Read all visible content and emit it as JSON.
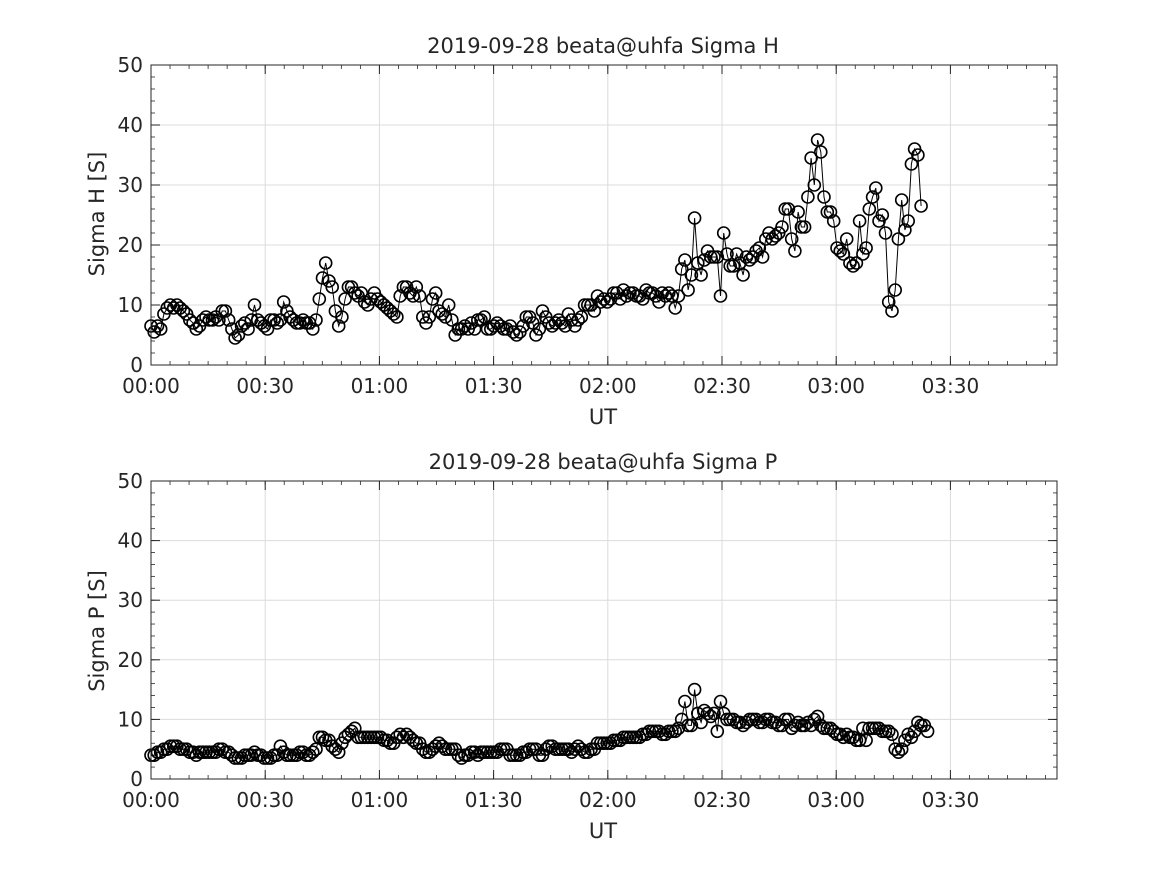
{
  "chart_data": [
    {
      "type": "line",
      "title": "2019-09-28  beata@uhfa Sigma H",
      "xlabel": "UT",
      "ylabel": "Sigma H [S]",
      "ylim": [
        0,
        50
      ],
      "xlim_minutes": [
        0,
        238
      ],
      "x_ticks": [
        "00:00",
        "00:30",
        "01:00",
        "01:30",
        "02:00",
        "02:30",
        "03:00",
        "03:30"
      ],
      "y_ticks": [
        "0",
        "10",
        "20",
        "30",
        "40",
        "50"
      ],
      "grid": true,
      "marker": "open-circle",
      "series": [
        {
          "x_start": "00:00",
          "x_step_minutes": 0.85,
          "values": [
            6.5,
            5.5,
            6.5,
            6,
            8.5,
            9.5,
            10,
            9.5,
            10,
            9.5,
            9,
            8.5,
            7.5,
            7,
            6,
            6.5,
            7.5,
            8,
            7.5,
            7.5,
            8,
            7.5,
            9,
            9,
            7.5,
            6,
            4.5,
            5,
            6.5,
            7,
            6,
            7.5,
            10,
            7.5,
            7,
            6.5,
            6,
            7.5,
            7.5,
            7,
            7.5,
            10.5,
            9,
            8,
            7.5,
            7,
            7,
            7.5,
            7,
            7,
            6,
            7.5,
            11,
            14.5,
            17,
            14,
            13,
            9,
            6.5,
            8,
            11,
            13,
            13,
            12,
            11.5,
            12,
            10.5,
            10,
            11,
            12,
            11,
            10.5,
            10,
            9.5,
            9,
            8.5,
            8,
            11.5,
            13,
            13,
            12,
            11.5,
            13,
            11.5,
            8,
            7,
            8,
            11,
            12,
            9,
            8.5,
            8,
            10,
            7.5,
            5,
            6,
            6,
            6.5,
            6,
            7,
            6,
            7.5,
            7.5,
            8,
            6,
            6,
            6.5,
            7,
            6.5,
            6,
            6,
            6.5,
            5.5,
            5,
            5.5,
            6.5,
            8,
            8,
            7,
            5,
            6,
            9,
            8,
            7,
            6.5,
            7,
            7.5,
            7,
            6.5,
            8.5,
            7.5,
            6.5,
            7.5,
            8,
            10,
            10,
            10,
            9,
            11.5,
            10.5,
            11,
            10.5,
            11,
            12,
            12,
            11,
            12.5,
            11.5,
            12,
            12,
            11.5,
            11.5,
            11,
            12.5,
            12,
            12,
            11.5,
            10.5,
            12,
            11.5,
            12,
            11.5,
            9.5,
            11.5,
            16,
            17.5,
            12.5,
            15,
            24.5,
            17,
            15,
            17.5,
            19,
            18,
            18,
            18,
            11.5,
            22,
            18.5,
            16.5,
            16.5,
            18.5,
            17,
            15,
            18,
            17.5,
            18,
            19,
            19.5,
            18,
            21,
            22,
            21,
            21.5,
            22,
            23,
            26,
            26,
            21,
            19,
            25.5,
            23,
            23,
            28,
            34.5,
            30,
            37.5,
            35.5,
            28,
            25.5,
            25.5,
            24,
            19.5,
            19,
            18.5,
            21,
            17,
            16.5,
            17,
            24,
            18.5,
            19.5,
            26,
            28,
            29.5,
            24,
            25,
            22,
            10.5,
            9,
            12.5,
            21,
            27.5,
            22.5,
            24,
            33.5,
            36,
            35,
            26.5
          ]
        }
      ]
    },
    {
      "type": "line",
      "title": "2019-09-28  beata@uhfa Sigma P",
      "xlabel": "UT",
      "ylabel": "Sigma P [S]",
      "ylim": [
        0,
        50
      ],
      "xlim_minutes": [
        0,
        238
      ],
      "x_ticks": [
        "00:00",
        "00:30",
        "01:00",
        "01:30",
        "02:00",
        "02:30",
        "03:00",
        "03:30"
      ],
      "y_ticks": [
        "0",
        "10",
        "20",
        "30",
        "40",
        "50"
      ],
      "grid": true,
      "marker": "open-circle",
      "series": [
        {
          "x_start": "00:00",
          "x_step_minutes": 0.85,
          "values": [
            4,
            4,
            4.5,
            4.5,
            5,
            5,
            5.5,
            5.5,
            5.5,
            5,
            5,
            5,
            4.5,
            4.5,
            4,
            4.5,
            4.5,
            4.5,
            4.5,
            4.5,
            4.5,
            5,
            5,
            4.5,
            4.5,
            4,
            3.5,
            3.5,
            3.5,
            4,
            4,
            4,
            4.5,
            4,
            4,
            3.5,
            3.5,
            3.5,
            4,
            4,
            5.5,
            4.5,
            4,
            4,
            4,
            4,
            4.5,
            4.5,
            4,
            4,
            4.5,
            5,
            7,
            7,
            6.5,
            6.5,
            5.5,
            5,
            4.5,
            6,
            7,
            7.5,
            8,
            8.5,
            7,
            7,
            7,
            7,
            7,
            7,
            7,
            7,
            6.5,
            6.5,
            6,
            6,
            7,
            7.5,
            7,
            7.5,
            7,
            6.5,
            6,
            6,
            5,
            4.5,
            4.5,
            5,
            5.5,
            6,
            5.5,
            5,
            5,
            5,
            5,
            4,
            3.5,
            4,
            4,
            4.5,
            4.5,
            4,
            4.5,
            4.5,
            4.5,
            4.5,
            4.5,
            4.5,
            5,
            5,
            5,
            4,
            4,
            4,
            4,
            4.5,
            4.5,
            5,
            5,
            5,
            4,
            4,
            5,
            5.5,
            5.5,
            5,
            5,
            5,
            5,
            5,
            4.5,
            5,
            5.5,
            5,
            4.5,
            4.5,
            5,
            5,
            6,
            6,
            6,
            6,
            6,
            6.5,
            6.5,
            6.5,
            7,
            7,
            7,
            7,
            7,
            7,
            7.5,
            7.5,
            8,
            8,
            8,
            8,
            7.5,
            7.5,
            8,
            8,
            8,
            8.5,
            10,
            13,
            9,
            9,
            15,
            11,
            9.5,
            11.5,
            11,
            10.5,
            11,
            8,
            13,
            11,
            10,
            10,
            10,
            9.5,
            9.5,
            9,
            9.5,
            10,
            10,
            10,
            9.5,
            9.5,
            10,
            10,
            9.5,
            9.5,
            9,
            9,
            10,
            10,
            8.5,
            9,
            9.5,
            9,
            9,
            9.5,
            9,
            10,
            10.5,
            9,
            8.5,
            8.5,
            8.5,
            8,
            7.5,
            7.5,
            7,
            7.5,
            7,
            7,
            6.5,
            6.5,
            8.5,
            6.5,
            8.5,
            8.5,
            8.5,
            8.5,
            8,
            8,
            8,
            7.5,
            5,
            4.5,
            5,
            6.5,
            7.5,
            7,
            8,
            9.5,
            9,
            9,
            8
          ]
        }
      ]
    }
  ]
}
